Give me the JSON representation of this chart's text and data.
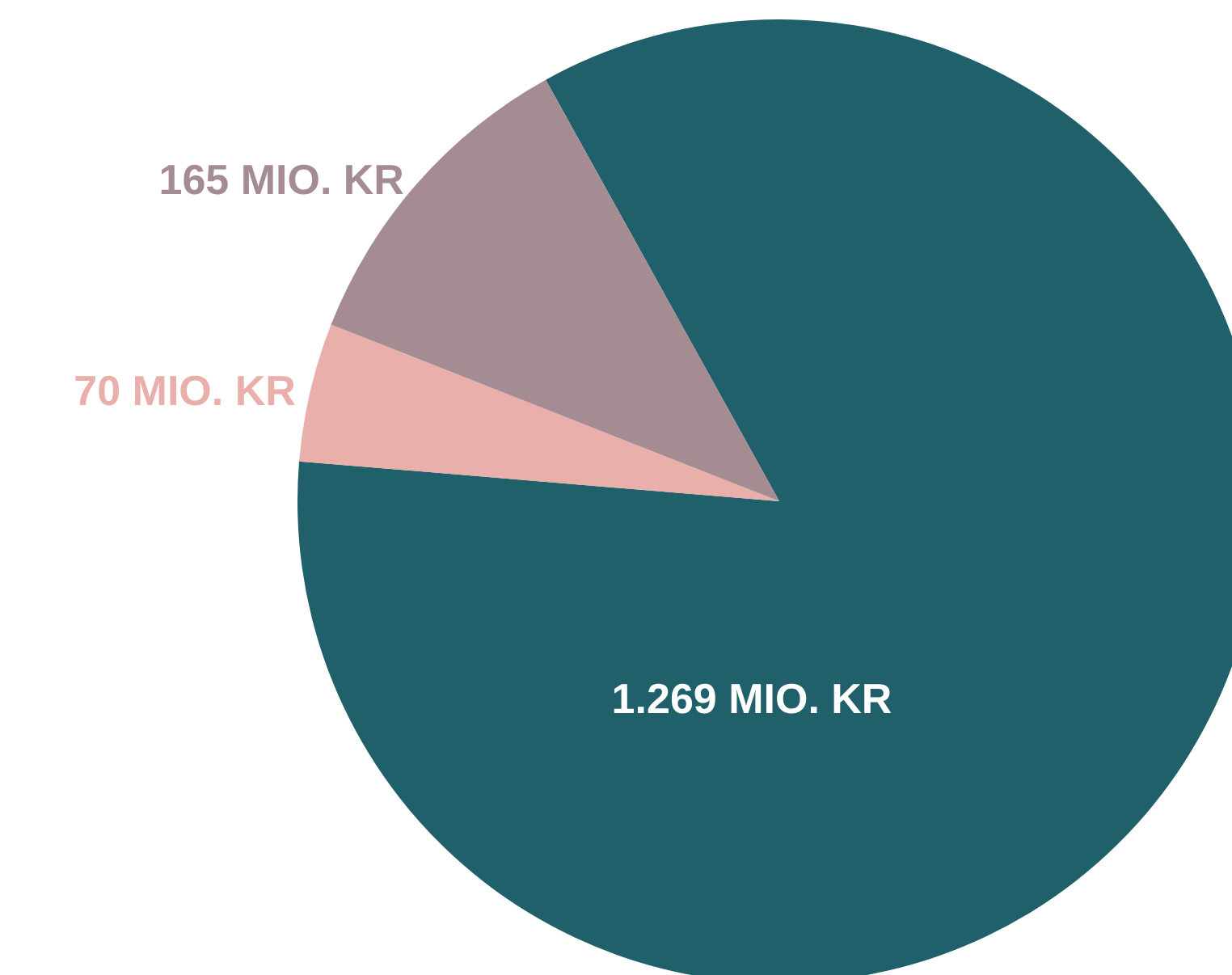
{
  "chart_data": {
    "type": "pie",
    "categories": [
      null,
      null,
      null
    ],
    "values": [
      1269,
      70,
      165
    ],
    "colors": [
      "#20606b",
      "#e8afab",
      "#a58c93"
    ],
    "value_labels": [
      "1.269 MIO. KR",
      "70 MIO. KR",
      "165 MIO. KR"
    ]
  }
}
